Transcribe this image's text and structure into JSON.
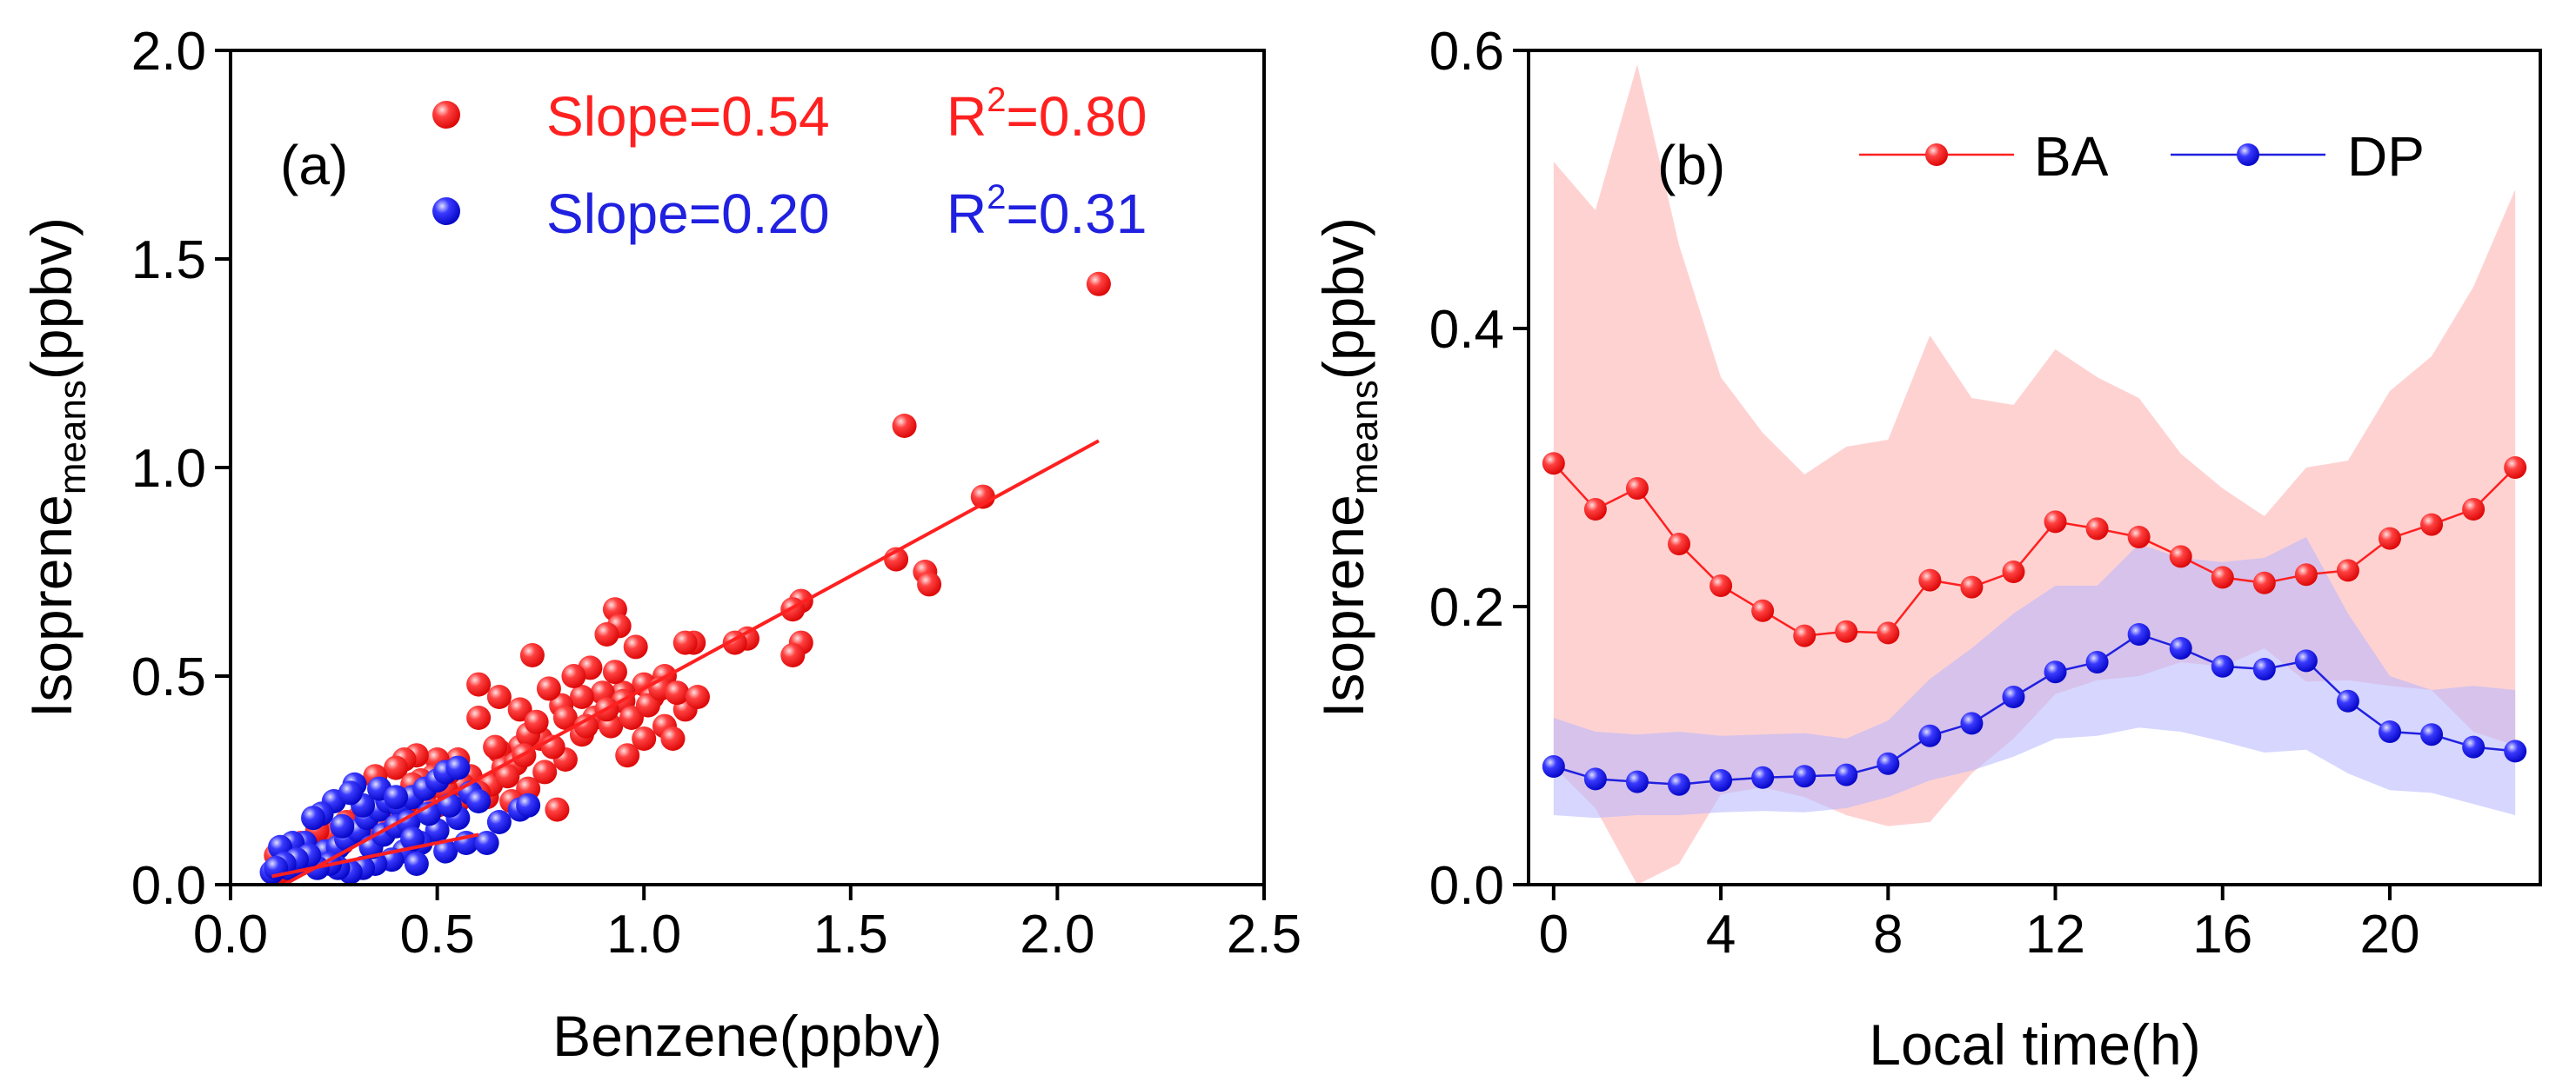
{
  "colors": {
    "red": "#ff2020",
    "blue": "#2020e0",
    "axis": "#000000",
    "band_red": "#ffb4b4",
    "band_blue": "#b4b4ff"
  },
  "chart_data": [
    {
      "id": "a",
      "type": "scatter",
      "panel_label": "(a)",
      "xlabel": "Benzene(ppbv)",
      "ylabel_main": "Isoprene",
      "ylabel_sub": "means",
      "ylabel_unit": "(ppbv)",
      "xlim": [
        0.0,
        2.5
      ],
      "ylim": [
        0.0,
        2.0
      ],
      "x_ticks": [
        0.0,
        0.5,
        1.0,
        1.5,
        2.0,
        2.5
      ],
      "x_tick_labels": [
        "0.0",
        "0.5",
        "1.0",
        "1.5",
        "2.0",
        "2.5"
      ],
      "y_ticks": [
        0.0,
        0.5,
        1.0,
        1.5,
        2.0
      ],
      "y_tick_labels": [
        "0.0",
        "0.5",
        "1.0",
        "1.5",
        "2.0"
      ],
      "legend": [
        {
          "series": "BA",
          "slope_text": "Slope=0.54",
          "r2_prefix": "R",
          "r2_sup": "2",
          "r2_value": "=0.80"
        },
        {
          "series": "DP",
          "slope_text": "Slope=0.20",
          "r2_prefix": "R",
          "r2_sup": "2",
          "r2_value": "=0.31"
        }
      ],
      "series": [
        {
          "name": "BA",
          "color": "#ff2020",
          "fit": {
            "slope": 0.54,
            "intercept": -0.07,
            "x_range": [
              0.13,
              2.1
            ]
          },
          "points": [
            [
              2.1,
              1.44
            ],
            [
              1.63,
              1.1
            ],
            [
              1.82,
              0.93
            ],
            [
              1.61,
              0.78
            ],
            [
              1.68,
              0.75
            ],
            [
              1.69,
              0.72
            ],
            [
              1.38,
              0.68
            ],
            [
              1.36,
              0.66
            ],
            [
              1.38,
              0.58
            ],
            [
              1.36,
              0.55
            ],
            [
              1.25,
              0.59
            ],
            [
              1.22,
              0.58
            ],
            [
              1.12,
              0.58
            ],
            [
              1.1,
              0.58
            ],
            [
              0.93,
              0.66
            ],
            [
              0.94,
              0.62
            ],
            [
              0.91,
              0.6
            ],
            [
              0.98,
              0.57
            ],
            [
              0.73,
              0.55
            ],
            [
              0.6,
              0.48
            ],
            [
              1.05,
              0.5
            ],
            [
              1.0,
              0.48
            ],
            [
              0.95,
              0.46
            ],
            [
              0.9,
              0.46
            ],
            [
              0.85,
              0.45
            ],
            [
              1.1,
              0.42
            ],
            [
              1.05,
              0.38
            ],
            [
              0.8,
              0.43
            ],
            [
              0.7,
              0.42
            ],
            [
              0.65,
              0.45
            ],
            [
              0.88,
              0.4
            ],
            [
              0.92,
              0.38
            ],
            [
              0.85,
              0.36
            ],
            [
              0.75,
              0.35
            ],
            [
              1.0,
              0.35
            ],
            [
              0.96,
              0.31
            ],
            [
              1.07,
              0.35
            ],
            [
              0.81,
              0.3
            ],
            [
              0.7,
              0.33
            ],
            [
              0.65,
              0.32
            ],
            [
              0.6,
              0.4
            ],
            [
              0.55,
              0.3
            ],
            [
              0.5,
              0.3
            ],
            [
              0.45,
              0.31
            ],
            [
              0.42,
              0.3
            ],
            [
              0.4,
              0.28
            ],
            [
              0.35,
              0.26
            ],
            [
              0.72,
              0.23
            ],
            [
              0.68,
              0.2
            ],
            [
              0.62,
              0.21
            ],
            [
              0.55,
              0.2
            ],
            [
              0.5,
              0.19
            ],
            [
              0.47,
              0.22
            ],
            [
              0.42,
              0.15
            ],
            [
              0.39,
              0.17
            ],
            [
              0.36,
              0.14
            ],
            [
              0.33,
              0.12
            ],
            [
              0.3,
              0.13
            ],
            [
              0.27,
              0.1
            ],
            [
              0.25,
              0.11
            ],
            [
              0.22,
              0.09
            ],
            [
              0.2,
              0.08
            ],
            [
              0.18,
              0.06
            ],
            [
              0.15,
              0.05
            ],
            [
              0.13,
              0.04
            ],
            [
              0.11,
              0.07
            ],
            [
              0.58,
              0.26
            ],
            [
              0.63,
              0.24
            ],
            [
              0.66,
              0.28
            ],
            [
              0.76,
              0.27
            ],
            [
              0.79,
              0.18
            ],
            [
              0.95,
              0.44
            ],
            [
              1.02,
              0.45
            ],
            [
              0.87,
              0.52
            ],
            [
              0.83,
              0.5
            ],
            [
              0.77,
              0.47
            ],
            [
              0.72,
              0.36
            ],
            [
              0.69,
              0.29
            ],
            [
              0.56,
              0.24
            ],
            [
              0.52,
              0.23
            ],
            [
              0.49,
              0.26
            ],
            [
              0.46,
              0.25
            ],
            [
              0.43,
              0.2
            ],
            [
              0.38,
              0.21
            ],
            [
              0.34,
              0.18
            ],
            [
              0.31,
              0.16
            ],
            [
              0.28,
              0.15
            ],
            [
              0.24,
              0.12
            ],
            [
              0.21,
              0.13
            ],
            [
              0.17,
              0.1
            ],
            [
              0.14,
              0.08
            ],
            [
              0.12,
              0.03
            ],
            [
              0.6,
              0.22
            ],
            [
              0.64,
              0.33
            ],
            [
              0.74,
              0.39
            ],
            [
              0.81,
              0.4
            ],
            [
              0.86,
              0.38
            ],
            [
              0.91,
              0.42
            ],
            [
              0.97,
              0.4
            ],
            [
              1.01,
              0.43
            ],
            [
              1.04,
              0.47
            ],
            [
              1.08,
              0.46
            ],
            [
              1.13,
              0.45
            ],
            [
              0.93,
              0.51
            ],
            [
              0.78,
              0.33
            ],
            [
              0.71,
              0.31
            ],
            [
              0.67,
              0.26
            ],
            [
              0.53,
              0.27
            ],
            [
              0.48,
              0.18
            ],
            [
              0.44,
              0.24
            ]
          ]
        },
        {
          "name": "DP",
          "color": "#2020e0",
          "fit": {
            "slope": 0.2,
            "intercept": 0.0,
            "x_range": [
              0.1,
              0.6
            ]
          },
          "points": [
            [
              0.3,
              0.24
            ],
            [
              0.25,
              0.2
            ],
            [
              0.22,
              0.17
            ],
            [
              0.2,
              0.16
            ],
            [
              0.18,
              0.1
            ],
            [
              0.15,
              0.1
            ],
            [
              0.12,
              0.09
            ],
            [
              0.1,
              0.03
            ],
            [
              0.14,
              0.04
            ],
            [
              0.17,
              0.05
            ],
            [
              0.2,
              0.06
            ],
            [
              0.23,
              0.08
            ],
            [
              0.26,
              0.09
            ],
            [
              0.28,
              0.11
            ],
            [
              0.31,
              0.13
            ],
            [
              0.33,
              0.16
            ],
            [
              0.36,
              0.18
            ],
            [
              0.38,
              0.2
            ],
            [
              0.41,
              0.19
            ],
            [
              0.44,
              0.21
            ],
            [
              0.47,
              0.23
            ],
            [
              0.5,
              0.25
            ],
            [
              0.52,
              0.27
            ],
            [
              0.55,
              0.28
            ],
            [
              0.58,
              0.22
            ],
            [
              0.6,
              0.2
            ],
            [
              0.55,
              0.16
            ],
            [
              0.5,
              0.13
            ],
            [
              0.46,
              0.1
            ],
            [
              0.42,
              0.08
            ],
            [
              0.39,
              0.06
            ],
            [
              0.35,
              0.05
            ],
            [
              0.32,
              0.04
            ],
            [
              0.29,
              0.03
            ],
            [
              0.26,
              0.04
            ],
            [
              0.24,
              0.05
            ],
            [
              0.21,
              0.04
            ],
            [
              0.19,
              0.07
            ],
            [
              0.16,
              0.06
            ],
            [
              0.13,
              0.05
            ],
            [
              0.11,
              0.04
            ],
            [
              0.34,
              0.09
            ],
            [
              0.37,
              0.12
            ],
            [
              0.4,
              0.14
            ],
            [
              0.43,
              0.15
            ],
            [
              0.48,
              0.17
            ],
            [
              0.53,
              0.19
            ],
            [
              0.45,
              0.05
            ],
            [
              0.52,
              0.08
            ],
            [
              0.57,
              0.1
            ],
            [
              0.65,
              0.15
            ],
            [
              0.7,
              0.18
            ],
            [
              0.72,
              0.19
            ],
            [
              0.62,
              0.1
            ],
            [
              0.27,
              0.14
            ],
            [
              0.32,
              0.19
            ],
            [
              0.29,
              0.22
            ],
            [
              0.36,
              0.23
            ],
            [
              0.4,
              0.21
            ],
            [
              0.44,
              0.11
            ]
          ]
        }
      ]
    },
    {
      "id": "b",
      "type": "line",
      "panel_label": "(b)",
      "xlabel": "Local time(h)",
      "ylabel_main": "Isoprene",
      "ylabel_sub": "means",
      "ylabel_unit": "(ppbv)",
      "xlim": [
        -0.6,
        23.6
      ],
      "ylim": [
        0.0,
        0.6
      ],
      "x_ticks": [
        0,
        4,
        8,
        12,
        16,
        20
      ],
      "x_tick_labels": [
        "0",
        "4",
        "8",
        "12",
        "16",
        "20"
      ],
      "y_ticks": [
        0.0,
        0.2,
        0.4,
        0.6
      ],
      "y_tick_labels": [
        "0.0",
        "0.2",
        "0.4",
        "0.6"
      ],
      "x": [
        0,
        1,
        2,
        3,
        4,
        5,
        6,
        7,
        8,
        9,
        10,
        11,
        12,
        13,
        14,
        15,
        16,
        17,
        18,
        19,
        20,
        21,
        22,
        23
      ],
      "series": [
        {
          "name": "BA",
          "color": "#ff2020",
          "band_color": "#ffb4b4",
          "values": [
            0.303,
            0.27,
            0.285,
            0.245,
            0.215,
            0.197,
            0.179,
            0.182,
            0.181,
            0.219,
            0.214,
            0.225,
            0.261,
            0.256,
            0.25,
            0.236,
            0.221,
            0.217,
            0.223,
            0.226,
            0.249,
            0.259,
            0.27,
            0.3
          ],
          "upper": [
            0.52,
            0.485,
            0.59,
            0.46,
            0.365,
            0.325,
            0.295,
            0.315,
            0.32,
            0.395,
            0.35,
            0.345,
            0.385,
            0.365,
            0.35,
            0.31,
            0.285,
            0.265,
            0.3,
            0.305,
            0.355,
            0.38,
            0.43,
            0.5
          ],
          "lower": [
            0.085,
            0.055,
            0.0,
            0.015,
            0.065,
            0.07,
            0.063,
            0.05,
            0.042,
            0.045,
            0.08,
            0.105,
            0.137,
            0.147,
            0.15,
            0.16,
            0.157,
            0.17,
            0.146,
            0.147,
            0.143,
            0.14,
            0.11,
            0.1
          ]
        },
        {
          "name": "DP",
          "color": "#2020e0",
          "band_color": "#b4b4ff",
          "values": [
            0.085,
            0.076,
            0.074,
            0.072,
            0.075,
            0.077,
            0.078,
            0.079,
            0.087,
            0.107,
            0.116,
            0.135,
            0.153,
            0.16,
            0.18,
            0.17,
            0.157,
            0.155,
            0.161,
            0.132,
            0.11,
            0.108,
            0.099,
            0.096
          ],
          "upper": [
            0.12,
            0.11,
            0.108,
            0.11,
            0.107,
            0.108,
            0.109,
            0.105,
            0.118,
            0.148,
            0.17,
            0.195,
            0.215,
            0.215,
            0.245,
            0.235,
            0.232,
            0.235,
            0.25,
            0.195,
            0.15,
            0.14,
            0.143,
            0.14
          ],
          "lower": [
            0.05,
            0.048,
            0.05,
            0.05,
            0.052,
            0.053,
            0.052,
            0.055,
            0.063,
            0.075,
            0.082,
            0.092,
            0.105,
            0.107,
            0.113,
            0.11,
            0.103,
            0.095,
            0.097,
            0.08,
            0.068,
            0.066,
            0.058,
            0.05
          ]
        }
      ],
      "legend": [
        {
          "series": "BA",
          "label": "BA"
        },
        {
          "series": "DP",
          "label": "DP"
        }
      ]
    }
  ]
}
